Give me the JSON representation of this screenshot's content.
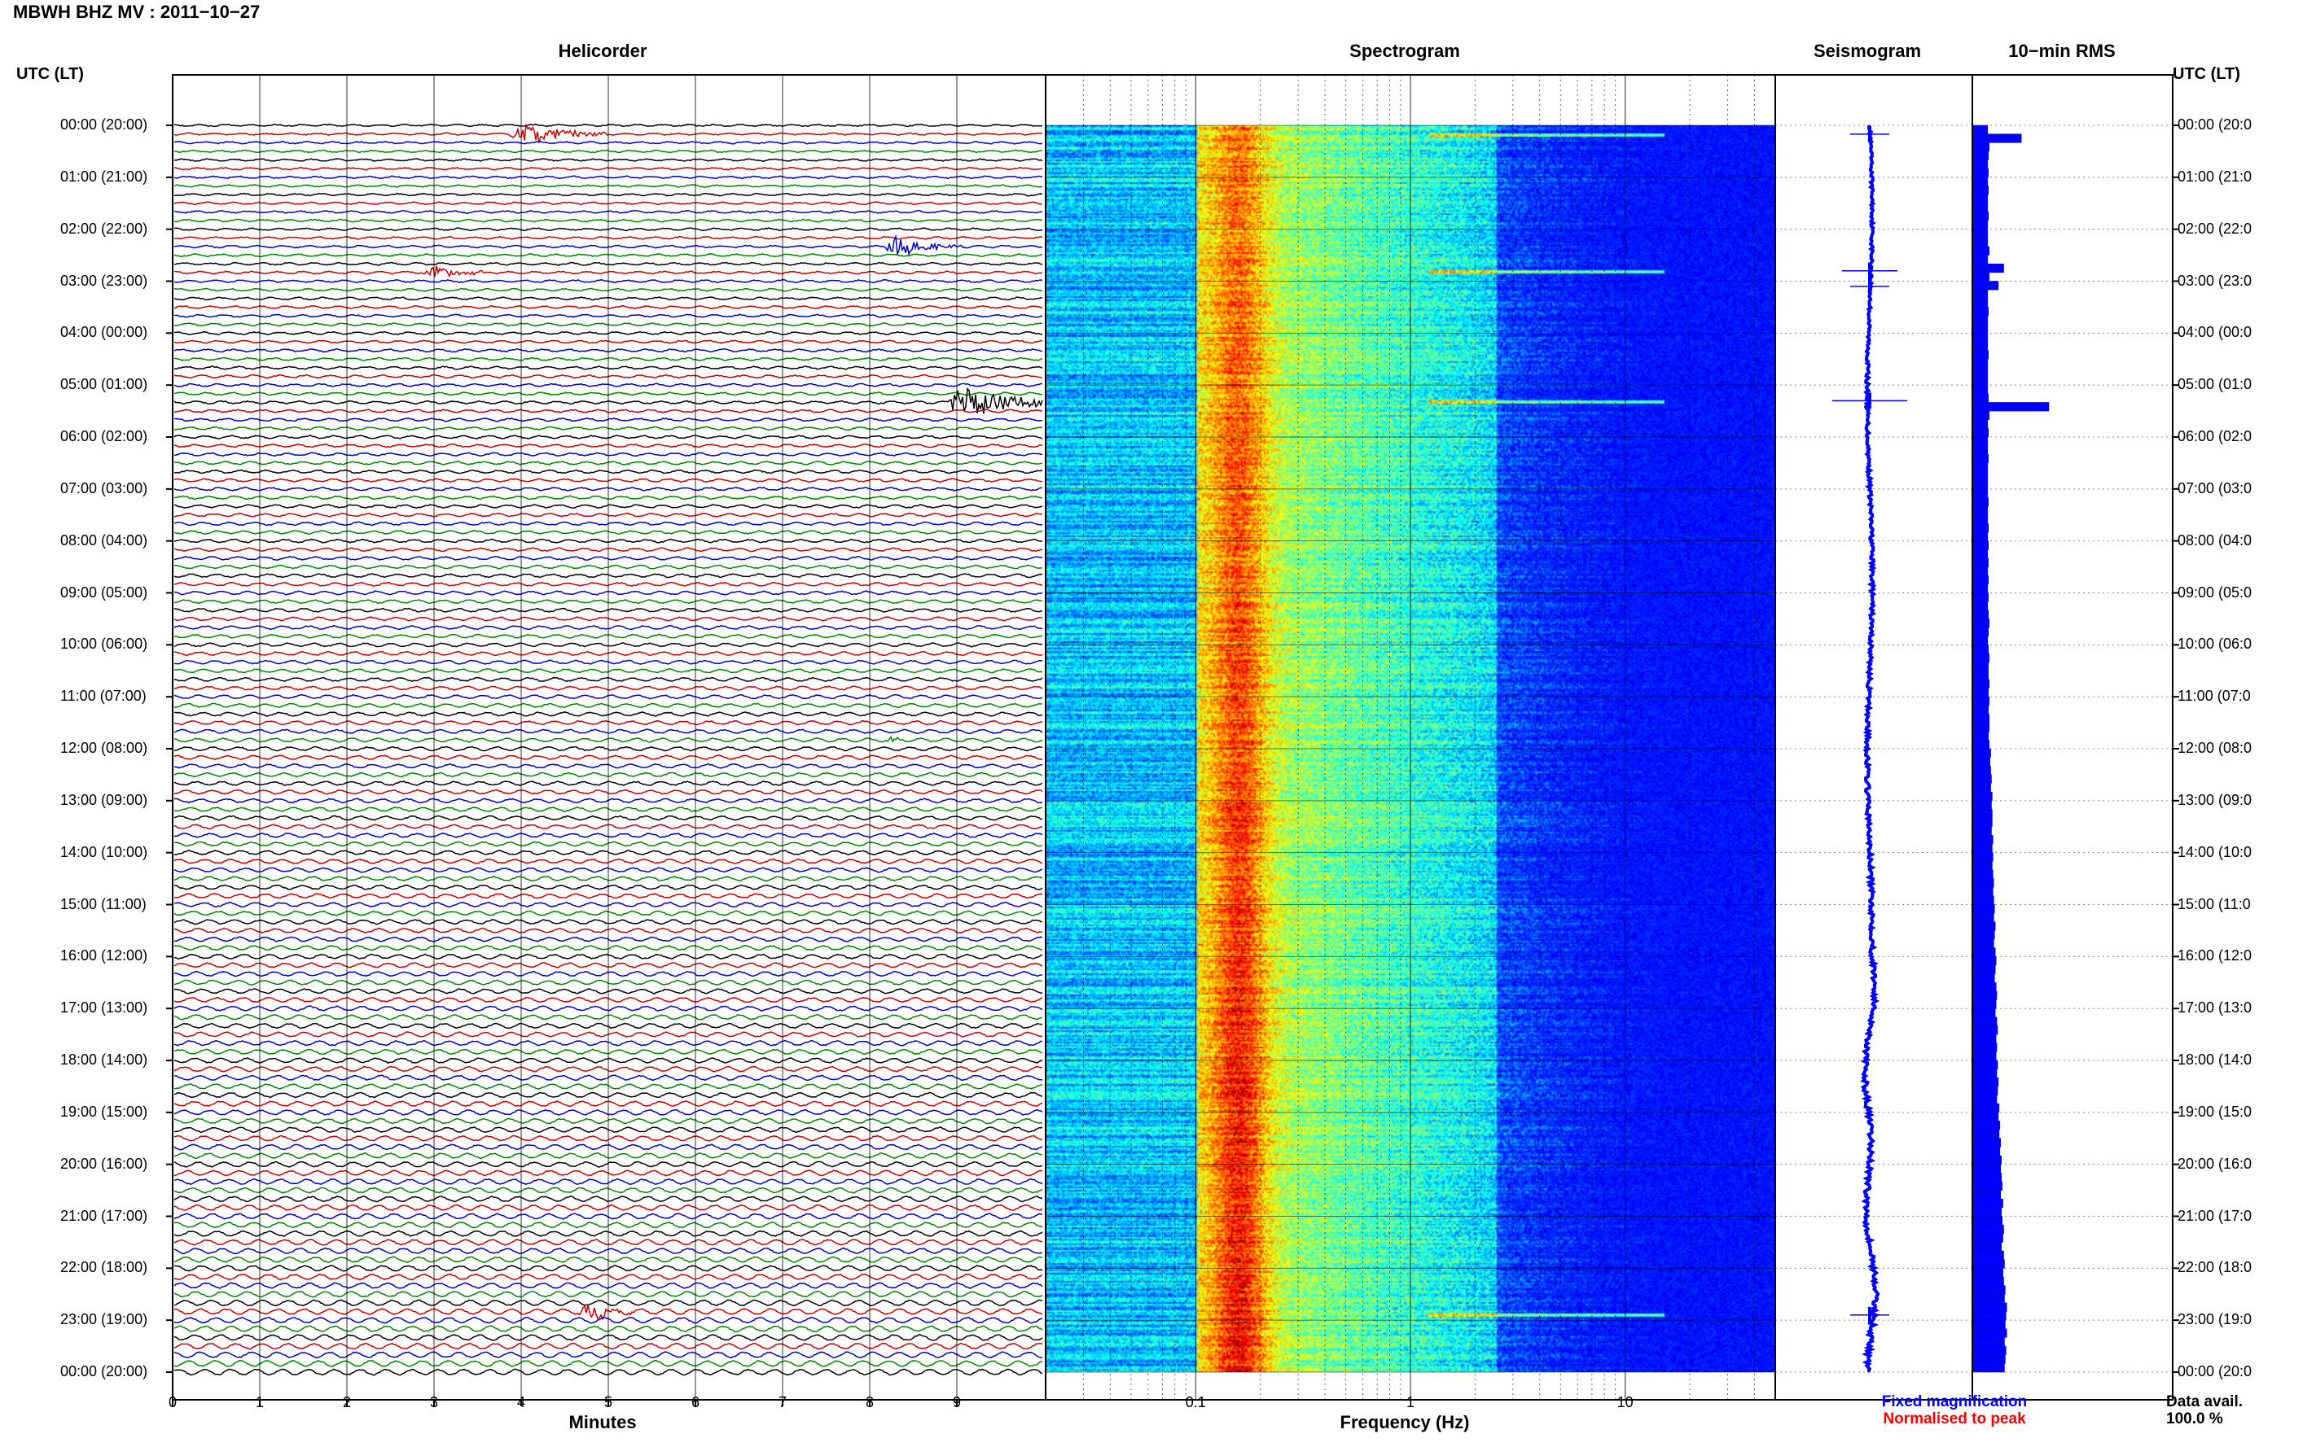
{
  "header": {
    "title": "MBWH BHZ MV : 2011−10−27",
    "utc_label": "UTC (LT)",
    "utc_label_right": "UTC (LT)"
  },
  "sections": {
    "helicorder": "Helicorder",
    "spectrogram": "Spectrogram",
    "seismogram": "Seismogram",
    "rms": "10−min RMS"
  },
  "axes": {
    "helicorder_xlabel": "Minutes",
    "spectrogram_xlabel": "Frequency (Hz)",
    "minute_ticks": [
      "0",
      "1",
      "2",
      "3",
      "4",
      "5",
      "6",
      "7",
      "8",
      "9"
    ],
    "freq_ticks": [
      "0.1",
      "1",
      "10"
    ]
  },
  "time_labels_left": [
    "00:00 (20:00)",
    "01:00 (21:00)",
    "02:00 (22:00)",
    "03:00 (23:00)",
    "04:00 (00:00)",
    "05:00 (01:00)",
    "06:00 (02:00)",
    "07:00 (03:00)",
    "08:00 (04:00)",
    "09:00 (05:00)",
    "10:00 (06:00)",
    "11:00 (07:00)",
    "12:00 (08:00)",
    "13:00 (09:00)",
    "14:00 (10:00)",
    "15:00 (11:00)",
    "16:00 (12:00)",
    "17:00 (13:00)",
    "18:00 (14:00)",
    "19:00 (15:00)",
    "20:00 (16:00)",
    "21:00 (17:00)",
    "22:00 (18:00)",
    "23:00 (19:00)",
    "00:00 (20:00)"
  ],
  "time_labels_right": [
    "00:00 (20:0",
    "01:00 (21:0",
    "02:00 (22:0",
    "03:00 (23:0",
    "04:00 (00:0",
    "05:00 (01:0",
    "06:00 (02:0",
    "07:00 (03:0",
    "08:00 (04:0",
    "09:00 (05:0",
    "10:00 (06:0",
    "11:00 (07:0",
    "12:00 (08:0",
    "13:00 (09:0",
    "14:00 (10:0",
    "15:00 (11:0",
    "16:00 (12:0",
    "17:00 (13:0",
    "18:00 (14:0",
    "19:00 (15:0",
    "20:00 (16:0",
    "21:00 (17:0",
    "22:00 (18:0",
    "23:00 (19:0",
    "00:00 (20:0"
  ],
  "legend": {
    "fixed": "Fixed magnification",
    "normalised": "Normalised to peak",
    "data_avail_label": "Data avail.",
    "data_avail_value": "100.0 %"
  },
  "colors": {
    "trace_cycle": [
      "#000000",
      "#cc0000",
      "#0000cc",
      "#008800"
    ],
    "fixed_legend": "#0000ff",
    "normalised_legend": "#ff0000",
    "rms_bar": "#0000ff",
    "seismogram_trace": "#0000ff"
  },
  "chart_data": [
    {
      "type": "line",
      "name": "Helicorder",
      "rows": 144,
      "row_minutes": 10,
      "xlabel": "Minutes",
      "xlim": [
        0,
        10
      ],
      "events": [
        {
          "row": 1,
          "minute": 4.0,
          "amplitude": 3.0,
          "duration": 1.0
        },
        {
          "row": 14,
          "minute": 8.3,
          "amplitude": 2.6,
          "duration": 0.8
        },
        {
          "row": 17,
          "minute": 3.0,
          "amplitude": 2.2,
          "duration": 0.6
        },
        {
          "row": 32,
          "minute": 9.0,
          "amplitude": 4.0,
          "duration": 1.4
        },
        {
          "row": 137,
          "minute": 4.8,
          "amplitude": 2.2,
          "duration": 0.5
        },
        {
          "row": 71,
          "minute": 8.3,
          "amplitude": 1.0,
          "duration": 0.1
        }
      ]
    },
    {
      "type": "heatmap",
      "name": "Spectrogram",
      "xlabel": "Frequency (Hz)",
      "xscale": "log",
      "xlim": [
        0.02,
        50
      ],
      "ylim_hours": [
        0,
        24
      ],
      "peak_band_hz": [
        0.15,
        0.3
      ],
      "event_lines_hours": [
        0.17,
        2.8,
        5.3,
        22.9
      ]
    },
    {
      "type": "line",
      "name": "Seismogram",
      "spikes_hours": [
        0.17,
        2.8,
        3.1,
        5.3,
        22.9
      ]
    },
    {
      "type": "bar",
      "name": "10-min RMS",
      "bins": 144,
      "max": 1.0,
      "values": [
        0.2,
        0.64,
        0.22,
        0.21,
        0.2,
        0.21,
        0.2,
        0.21,
        0.2,
        0.2,
        0.21,
        0.2,
        0.2,
        0.2,
        0.22,
        0.2,
        0.41,
        0.22,
        0.34,
        0.2,
        0.2,
        0.21,
        0.2,
        0.2,
        0.2,
        0.2,
        0.21,
        0.2,
        0.2,
        0.2,
        0.2,
        0.21,
        1.0,
        0.22,
        0.2,
        0.21,
        0.2,
        0.2,
        0.21,
        0.2,
        0.2,
        0.2,
        0.2,
        0.21,
        0.2,
        0.2,
        0.21,
        0.2,
        0.21,
        0.2,
        0.21,
        0.2,
        0.21,
        0.2,
        0.21,
        0.2,
        0.21,
        0.22,
        0.21,
        0.2,
        0.21,
        0.22,
        0.21,
        0.21,
        0.22,
        0.21,
        0.22,
        0.21,
        0.22,
        0.22,
        0.21,
        0.22,
        0.24,
        0.23,
        0.24,
        0.25,
        0.24,
        0.26,
        0.25,
        0.26,
        0.26,
        0.25,
        0.27,
        0.26,
        0.27,
        0.26,
        0.27,
        0.28,
        0.27,
        0.28,
        0.29,
        0.28,
        0.3,
        0.29,
        0.28,
        0.3,
        0.31,
        0.3,
        0.29,
        0.31,
        0.32,
        0.31,
        0.3,
        0.32,
        0.33,
        0.31,
        0.32,
        0.31,
        0.33,
        0.32,
        0.34,
        0.33,
        0.32,
        0.35,
        0.34,
        0.36,
        0.35,
        0.37,
        0.36,
        0.38,
        0.37,
        0.38,
        0.39,
        0.37,
        0.4,
        0.38,
        0.39,
        0.41,
        0.4,
        0.38,
        0.41,
        0.42,
        0.4,
        0.41,
        0.43,
        0.42,
        0.45,
        0.44,
        0.43,
        0.45,
        0.42,
        0.44,
        0.43,
        0.42
      ]
    }
  ]
}
